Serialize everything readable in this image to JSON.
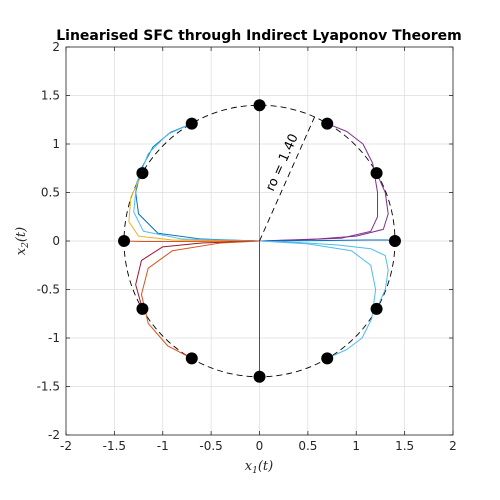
{
  "chart_data": {
    "type": "line",
    "title": "Linearised SFC through Indirect Lyaponov Theorem",
    "xlabel": "x1(t)",
    "ylabel": "x2(t)",
    "xlim": [
      -2,
      2
    ],
    "ylim": [
      -2,
      2
    ],
    "xticks": [
      -2,
      -1.5,
      -1,
      -0.5,
      0,
      0.5,
      1,
      1.5,
      2
    ],
    "yticks": [
      -2,
      -1.5,
      -1,
      -0.5,
      0,
      0.5,
      1,
      1.5,
      2
    ],
    "xtick_labels": [
      "-2",
      "-1.5",
      "-1",
      "-0.5",
      "0",
      "0.5",
      "1",
      "1.5",
      "2"
    ],
    "ytick_labels": [
      "-2",
      "-1.5",
      "-1",
      "-0.5",
      "0",
      "0.5",
      "1",
      "1.5",
      "2"
    ],
    "grid": true,
    "circle": {
      "radius": 1.4,
      "style": "dashed",
      "color": "#000000"
    },
    "radius_annotation": {
      "text": "ro = 1.40",
      "angle_deg": 66
    },
    "initial_points": [
      [
        0,
        1.4
      ],
      [
        0.7,
        1.21
      ],
      [
        1.21,
        0.7
      ],
      [
        1.4,
        0
      ],
      [
        1.21,
        -0.7
      ],
      [
        0.7,
        -1.21
      ],
      [
        0,
        -1.4
      ],
      [
        -0.7,
        -1.21
      ],
      [
        -1.21,
        -0.7
      ],
      [
        -1.4,
        0
      ],
      [
        -1.21,
        0.7
      ],
      [
        -0.7,
        1.21
      ]
    ],
    "series": [
      {
        "color": "#4dbeee",
        "points": [
          [
            0,
            1.4
          ],
          [
            0,
            1.0
          ],
          [
            0,
            0.5
          ],
          [
            0,
            0
          ]
        ]
      },
      {
        "color": "#7e2f8e",
        "points": [
          [
            0,
            -1.4
          ],
          [
            0,
            -1.0
          ],
          [
            0,
            -0.5
          ],
          [
            0,
            0
          ]
        ]
      },
      {
        "color": "#7e2f8e",
        "points": [
          [
            0.7,
            1.21
          ],
          [
            0.9,
            1.13
          ],
          [
            1.07,
            1.0
          ],
          [
            1.17,
            0.8
          ],
          [
            1.22,
            0.5
          ],
          [
            1.22,
            0.25
          ],
          [
            1.15,
            0.1
          ],
          [
            0.85,
            0.03
          ],
          [
            0.4,
            0.01
          ],
          [
            0,
            0
          ]
        ]
      },
      {
        "color": "#7e2f8e",
        "points": [
          [
            1.21,
            0.7
          ],
          [
            1.3,
            0.5
          ],
          [
            1.33,
            0.28
          ],
          [
            1.28,
            0.12
          ],
          [
            1.0,
            0.05
          ],
          [
            0.6,
            0.02
          ],
          [
            0,
            0
          ]
        ]
      },
      {
        "color": "#0072bd",
        "points": [
          [
            1.4,
            0
          ],
          [
            1.32,
            0.01
          ],
          [
            1.1,
            0.01
          ],
          [
            0.7,
            0.005
          ],
          [
            0,
            0
          ]
        ]
      },
      {
        "color": "#4dbeee",
        "points": [
          [
            1.21,
            -0.7
          ],
          [
            1.3,
            -0.5
          ],
          [
            1.33,
            -0.3
          ],
          [
            1.3,
            -0.15
          ],
          [
            1.15,
            -0.08
          ],
          [
            0.8,
            -0.04
          ],
          [
            0.4,
            -0.015
          ],
          [
            0,
            0
          ]
        ]
      },
      {
        "color": "#4dbeee",
        "points": [
          [
            0.7,
            -1.21
          ],
          [
            0.9,
            -1.12
          ],
          [
            1.06,
            -1.0
          ],
          [
            1.16,
            -0.8
          ],
          [
            1.2,
            -0.5
          ],
          [
            1.15,
            -0.25
          ],
          [
            0.95,
            -0.1
          ],
          [
            0.5,
            -0.03
          ],
          [
            0,
            0
          ]
        ]
      },
      {
        "color": "#0072bd",
        "points": [
          [
            -0.7,
            1.21
          ],
          [
            -0.92,
            1.12
          ],
          [
            -1.1,
            0.97
          ],
          [
            -1.22,
            0.75
          ],
          [
            -1.28,
            0.5
          ],
          [
            -1.25,
            0.28
          ],
          [
            -1.05,
            0.08
          ],
          [
            -0.6,
            0.02
          ],
          [
            0,
            0
          ]
        ]
      },
      {
        "color": "#4dbeee",
        "points": [
          [
            -0.7,
            1.21
          ],
          [
            -0.95,
            1.1
          ],
          [
            -1.15,
            0.9
          ],
          [
            -1.27,
            0.6
          ],
          [
            -1.3,
            0.3
          ],
          [
            -1.2,
            0.1
          ],
          [
            -0.8,
            0.02
          ],
          [
            0,
            0
          ]
        ]
      },
      {
        "color": "#edb120",
        "points": [
          [
            -1.21,
            0.7
          ],
          [
            -1.33,
            0.45
          ],
          [
            -1.35,
            0.2
          ],
          [
            -1.25,
            0.05
          ],
          [
            -0.9,
            0.01
          ],
          [
            0,
            0
          ]
        ]
      },
      {
        "color": "#d95319",
        "points": [
          [
            -1.4,
            0
          ],
          [
            -1.2,
            -0.005
          ],
          [
            -0.8,
            -0.005
          ],
          [
            0,
            0
          ]
        ]
      },
      {
        "color": "#a2142f",
        "points": [
          [
            -1.21,
            -0.7
          ],
          [
            -1.28,
            -0.45
          ],
          [
            -1.22,
            -0.2
          ],
          [
            -1.0,
            -0.06
          ],
          [
            -0.6,
            -0.02
          ],
          [
            0,
            0
          ]
        ]
      },
      {
        "color": "#d95319",
        "points": [
          [
            -0.7,
            -1.21
          ],
          [
            -0.95,
            -1.08
          ],
          [
            -1.15,
            -0.85
          ],
          [
            -1.22,
            -0.55
          ],
          [
            -1.15,
            -0.28
          ],
          [
            -0.9,
            -0.1
          ],
          [
            -0.4,
            -0.02
          ],
          [
            0,
            0
          ]
        ]
      }
    ]
  }
}
